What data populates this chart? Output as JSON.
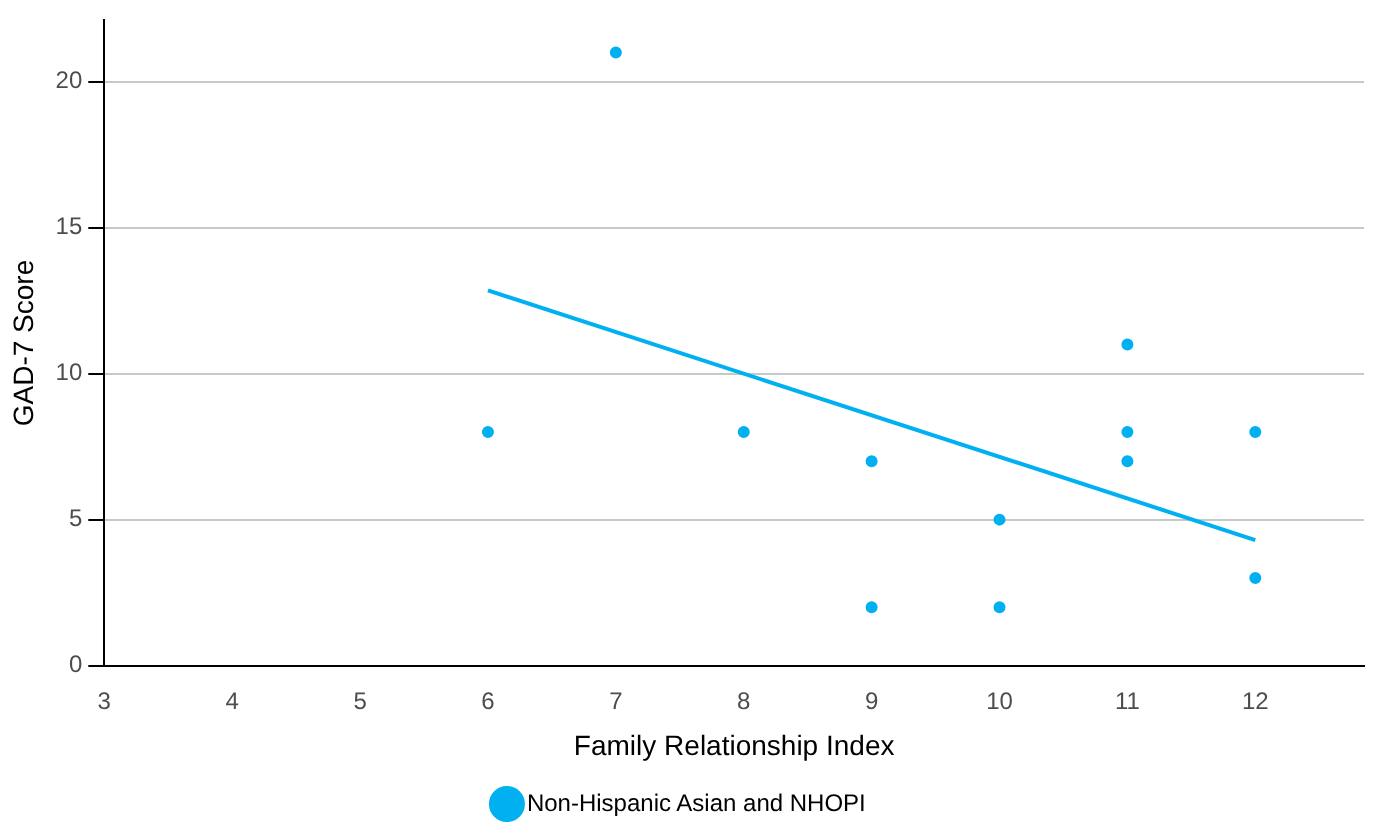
{
  "chart_data": {
    "type": "scatter",
    "xlabel": "Family Relationship Index",
    "ylabel": "GAD-7 Score",
    "xlim": [
      3,
      12.85
    ],
    "xticks": [
      3,
      4,
      5,
      6,
      7,
      8,
      9,
      10,
      11,
      12
    ],
    "ylim": [
      0,
      22.1
    ],
    "yticks": [
      0,
      5,
      10,
      15,
      20
    ],
    "grid": "y",
    "legend": "bottom",
    "marker": "circle",
    "series": [
      {
        "name": "Non-Hispanic Asian and NHOPI",
        "color": "#00b0f0",
        "x": [
          6,
          7,
          8,
          9,
          9,
          10,
          10,
          11,
          11,
          11,
          12,
          12
        ],
        "values": [
          8,
          21,
          8,
          7,
          2,
          5,
          2,
          11,
          8,
          7,
          8,
          3
        ]
      },
      {
        "type": "line",
        "color": "#00b0f0",
        "x": [
          6,
          12
        ],
        "values": [
          12.85,
          4.3
        ],
        "marker": "none"
      }
    ]
  }
}
